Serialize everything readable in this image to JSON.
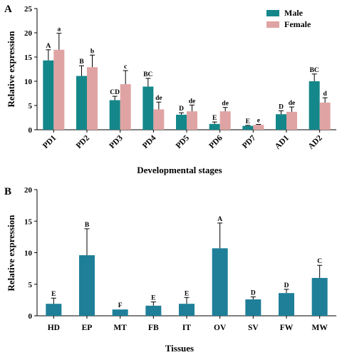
{
  "chart_data": [
    {
      "panel": "A",
      "type": "bar",
      "xlabel": "Developmental stages",
      "ylabel": "Relative expression",
      "ylim": [
        0,
        25
      ],
      "yticks": [
        0,
        5,
        10,
        15,
        20,
        25
      ],
      "categories": [
        "PD1",
        "PD2",
        "PD3",
        "PD4",
        "PD5",
        "PD6",
        "PD7",
        "AD1",
        "AD2"
      ],
      "legend_position": "top-right",
      "series": [
        {
          "name": "Male",
          "color": "#14878a",
          "values": [
            14.3,
            11.1,
            6.1,
            8.9,
            3.1,
            1.2,
            0.8,
            3.2,
            10.0
          ],
          "errors": [
            2.2,
            2.1,
            0.8,
            1.7,
            0.4,
            0.4,
            0.1,
            0.7,
            1.5
          ],
          "letters": [
            "A",
            "B",
            "CD",
            "BC",
            "D",
            "E",
            "E",
            "D",
            "BC"
          ]
        },
        {
          "name": "Female",
          "color": "#e0a3a3",
          "values": [
            16.5,
            12.9,
            9.4,
            4.2,
            3.8,
            3.8,
            1.0,
            3.7,
            5.6
          ],
          "errors": [
            3.4,
            2.5,
            2.8,
            1.5,
            1.3,
            0.8,
            0.1,
            1.0,
            1.0
          ],
          "letters": [
            "a",
            "b",
            "c",
            "de",
            "de",
            "de",
            "e",
            "de",
            "d"
          ]
        }
      ]
    },
    {
      "panel": "B",
      "type": "bar",
      "xlabel": "Tissues",
      "ylabel": "Relative expression",
      "ylim": [
        0,
        20
      ],
      "yticks": [
        0,
        5,
        10,
        15,
        20
      ],
      "categories": [
        "HD",
        "EP",
        "MT",
        "FB",
        "IT",
        "OV",
        "SV",
        "FW",
        "MW"
      ],
      "series": [
        {
          "color": "#1f7f99",
          "values": [
            1.9,
            9.6,
            1.0,
            1.6,
            1.9,
            10.7,
            2.6,
            3.6,
            6.0
          ],
          "errors": [
            0.9,
            4.2,
            0.0,
            0.6,
            1.0,
            4.0,
            0.4,
            0.6,
            2.0
          ],
          "letters": [
            "E",
            "B",
            "F",
            "E",
            "E",
            "A",
            "D",
            "D",
            "C"
          ]
        }
      ]
    }
  ]
}
